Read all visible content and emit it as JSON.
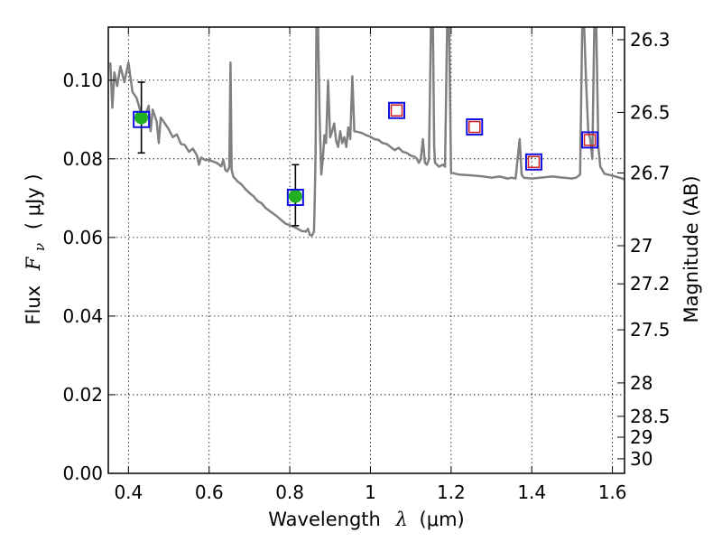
{
  "chart_data": {
    "type": "scatter",
    "xlabel": {
      "prefix": "Wavelength",
      "symbol": "λ",
      "unit": "(μm)"
    },
    "ylabel": {
      "prefix": "Flux",
      "symbol": "F",
      "subscript": "ν",
      "unit": "( μJy )"
    },
    "y2label": "Magnitude (AB)",
    "xlim": [
      0.35,
      1.63
    ],
    "ylim": [
      0.0,
      0.1135
    ],
    "grid": true,
    "x_ticks": [
      0.4,
      0.6,
      0.8,
      1.0,
      1.2,
      1.4,
      1.6
    ],
    "x_tick_labels": [
      "0.4",
      "0.6",
      "0.8",
      "1",
      "1.2",
      "1.4",
      "1.6"
    ],
    "y_ticks": [
      0.0,
      0.02,
      0.04,
      0.06,
      0.08,
      0.1
    ],
    "y_tick_labels": [
      "0.00",
      "0.02",
      "0.04",
      "0.06",
      "0.08",
      "0.10"
    ],
    "magnitude_ticks": [
      {
        "label": "26.3",
        "flux": 0.1103
      },
      {
        "label": "26.5",
        "flux": 0.0918
      },
      {
        "label": "26.7",
        "flux": 0.0764
      },
      {
        "label": "27",
        "flux": 0.0579
      },
      {
        "label": "27.2",
        "flux": 0.0482
      },
      {
        "label": "27.5",
        "flux": 0.0365
      },
      {
        "label": "28",
        "flux": 0.023
      },
      {
        "label": "28.5",
        "flux": 0.0145
      },
      {
        "label": "29",
        "flux": 0.0092
      },
      {
        "label": "30",
        "flux": 0.0037
      }
    ],
    "series": [
      {
        "kind": "model-sed",
        "color": "#808080",
        "points": [
          [
            0.355,
            0.1045
          ],
          [
            0.36,
            0.093
          ],
          [
            0.365,
            0.102
          ],
          [
            0.372,
            0.0985
          ],
          [
            0.38,
            0.1035
          ],
          [
            0.39,
            0.0995
          ],
          [
            0.4,
            0.1045
          ],
          [
            0.41,
            0.097
          ],
          [
            0.42,
            0.0955
          ],
          [
            0.43,
            0.092
          ],
          [
            0.44,
            0.0905
          ],
          [
            0.45,
            0.0935
          ],
          [
            0.455,
            0.087
          ],
          [
            0.46,
            0.0925
          ],
          [
            0.47,
            0.0895
          ],
          [
            0.475,
            0.084
          ],
          [
            0.48,
            0.0905
          ],
          [
            0.49,
            0.089
          ],
          [
            0.5,
            0.0875
          ],
          [
            0.51,
            0.0855
          ],
          [
            0.52,
            0.0862
          ],
          [
            0.53,
            0.0838
          ],
          [
            0.54,
            0.0835
          ],
          [
            0.55,
            0.0818
          ],
          [
            0.56,
            0.0826
          ],
          [
            0.57,
            0.0808
          ],
          [
            0.575,
            0.0785
          ],
          [
            0.58,
            0.0803
          ],
          [
            0.59,
            0.0797
          ],
          [
            0.6,
            0.0797
          ],
          [
            0.61,
            0.0793
          ],
          [
            0.62,
            0.0789
          ],
          [
            0.63,
            0.0781
          ],
          [
            0.635,
            0.0797
          ],
          [
            0.64,
            0.0772
          ],
          [
            0.645,
            0.0768
          ],
          [
            0.65,
            0.0778
          ],
          [
            0.653,
            0.1045
          ],
          [
            0.656,
            0.0772
          ],
          [
            0.66,
            0.0755
          ],
          [
            0.67,
            0.0743
          ],
          [
            0.68,
            0.0735
          ],
          [
            0.69,
            0.0723
          ],
          [
            0.7,
            0.0713
          ],
          [
            0.71,
            0.0705
          ],
          [
            0.72,
            0.0693
          ],
          [
            0.73,
            0.0687
          ],
          [
            0.74,
            0.0675
          ],
          [
            0.75,
            0.0667
          ],
          [
            0.76,
            0.066
          ],
          [
            0.77,
            0.0652
          ],
          [
            0.78,
            0.0643
          ],
          [
            0.79,
            0.0635
          ],
          [
            0.8,
            0.0631
          ],
          [
            0.81,
            0.0627
          ],
          [
            0.82,
            0.0622
          ],
          [
            0.83,
            0.0616
          ],
          [
            0.84,
            0.0615
          ],
          [
            0.845,
            0.0622
          ],
          [
            0.85,
            0.0606
          ],
          [
            0.855,
            0.0605
          ],
          [
            0.86,
            0.0615
          ],
          [
            0.862,
            0.07
          ],
          [
            0.864,
            0.082
          ],
          [
            0.866,
            0.1135
          ],
          [
            0.87,
            0.1135
          ],
          [
            0.874,
            0.09
          ],
          [
            0.878,
            0.076
          ],
          [
            0.882,
            0.08
          ],
          [
            0.886,
            0.086
          ],
          [
            0.89,
            0.084
          ],
          [
            0.895,
            0.1
          ],
          [
            0.9,
            0.0855
          ],
          [
            0.905,
            0.087
          ],
          [
            0.91,
            0.089
          ],
          [
            0.915,
            0.0845
          ],
          [
            0.92,
            0.083
          ],
          [
            0.925,
            0.087
          ],
          [
            0.93,
            0.084
          ],
          [
            0.935,
            0.0855
          ],
          [
            0.94,
            0.083
          ],
          [
            0.945,
            0.088
          ],
          [
            0.95,
            0.085
          ],
          [
            0.955,
            0.101
          ],
          [
            0.96,
            0.087
          ],
          [
            0.97,
            0.0868
          ],
          [
            0.98,
            0.0865
          ],
          [
            0.99,
            0.086
          ],
          [
            1.0,
            0.0856
          ],
          [
            1.01,
            0.085
          ],
          [
            1.02,
            0.0848
          ],
          [
            1.03,
            0.084
          ],
          [
            1.04,
            0.0838
          ],
          [
            1.05,
            0.083
          ],
          [
            1.06,
            0.0822
          ],
          [
            1.07,
            0.0828
          ],
          [
            1.08,
            0.0818
          ],
          [
            1.09,
            0.0815
          ],
          [
            1.1,
            0.0808
          ],
          [
            1.11,
            0.0805
          ],
          [
            1.115,
            0.08
          ],
          [
            1.12,
            0.079
          ],
          [
            1.125,
            0.08
          ],
          [
            1.13,
            0.085
          ],
          [
            1.135,
            0.079
          ],
          [
            1.14,
            0.0785
          ],
          [
            1.145,
            0.08
          ],
          [
            1.15,
            0.1135
          ],
          [
            1.155,
            0.1135
          ],
          [
            1.158,
            0.083
          ],
          [
            1.16,
            0.079
          ],
          [
            1.17,
            0.078
          ],
          [
            1.18,
            0.0785
          ],
          [
            1.185,
            0.078
          ],
          [
            1.19,
            0.1135
          ],
          [
            1.195,
            0.1135
          ],
          [
            1.2,
            0.0765
          ],
          [
            1.21,
            0.0762
          ],
          [
            1.22,
            0.076
          ],
          [
            1.25,
            0.0758
          ],
          [
            1.28,
            0.0755
          ],
          [
            1.3,
            0.0752
          ],
          [
            1.32,
            0.0755
          ],
          [
            1.34,
            0.075
          ],
          [
            1.35,
            0.0752
          ],
          [
            1.36,
            0.075
          ],
          [
            1.37,
            0.085
          ],
          [
            1.375,
            0.076
          ],
          [
            1.38,
            0.0752
          ],
          [
            1.4,
            0.075
          ],
          [
            1.42,
            0.0752
          ],
          [
            1.45,
            0.0755
          ],
          [
            1.48,
            0.0752
          ],
          [
            1.5,
            0.075
          ],
          [
            1.51,
            0.0752
          ],
          [
            1.52,
            0.076
          ],
          [
            1.525,
            0.1135
          ],
          [
            1.53,
            0.1135
          ],
          [
            1.535,
            0.099
          ],
          [
            1.54,
            0.087
          ],
          [
            1.545,
            0.085
          ],
          [
            1.55,
            0.08
          ],
          [
            1.555,
            0.1135
          ],
          [
            1.56,
            0.1135
          ],
          [
            1.565,
            0.083
          ],
          [
            1.57,
            0.078
          ],
          [
            1.58,
            0.0762
          ],
          [
            1.6,
            0.0757
          ],
          [
            1.615,
            0.0753
          ],
          [
            1.63,
            0.0748
          ]
        ]
      },
      {
        "kind": "observed-detections",
        "marker": "circle",
        "color": "#20b020",
        "points": [
          {
            "x": 0.432,
            "y": 0.0905,
            "err_low": 0.0815,
            "err_high": 0.0995
          },
          {
            "x": 0.814,
            "y": 0.0705,
            "err_low": 0.063,
            "err_high": 0.0785
          }
        ]
      },
      {
        "kind": "observed-upper-limits",
        "marker": "open-square",
        "color": "#d02020",
        "points": [
          {
            "x": 1.065,
            "y": 0.0923
          },
          {
            "x": 1.258,
            "y": 0.0881
          },
          {
            "x": 1.405,
            "y": 0.0792
          },
          {
            "x": 1.544,
            "y": 0.0848
          }
        ]
      },
      {
        "kind": "model-photometry",
        "marker": "open-square",
        "color": "#1010e0",
        "points": [
          {
            "x": 0.432,
            "y": 0.09
          },
          {
            "x": 0.814,
            "y": 0.0702
          },
          {
            "x": 1.065,
            "y": 0.0923
          },
          {
            "x": 1.258,
            "y": 0.0881
          },
          {
            "x": 1.405,
            "y": 0.0792
          },
          {
            "x": 1.544,
            "y": 0.0848
          }
        ]
      }
    ]
  }
}
